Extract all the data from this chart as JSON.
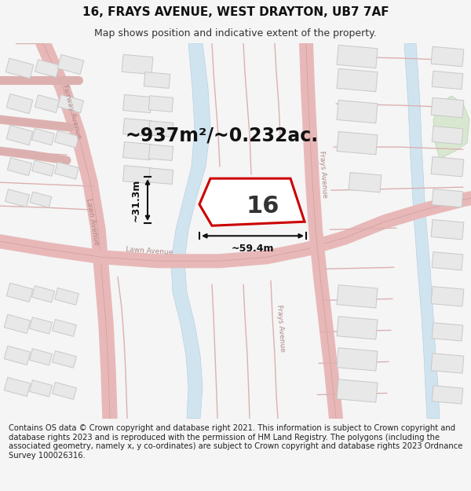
{
  "title": "16, FRAYS AVENUE, WEST DRAYTON, UB7 7AF",
  "subtitle": "Map shows position and indicative extent of the property.",
  "area_text": "~937m²/~0.232ac.",
  "property_number": "16",
  "width_label": "~59.4m",
  "height_label": "~31.3m",
  "copyright_text": "Contains OS data © Crown copyright and database right 2021. This information is subject to Crown copyright and database rights 2023 and is reproduced with the permission of HM Land Registry. The polygons (including the associated geometry, namely x, y co-ordinates) are subject to Crown copyright and database rights 2023 Ordnance Survey 100026316.",
  "bg_color": "#f5f5f5",
  "map_bg": "#ffffff",
  "road_color": "#e8b8b8",
  "road_outline": "#d4a0a0",
  "water_color": "#d0e4f0",
  "water_edge": "#b8cfe0",
  "green_color": "#d8e8d0",
  "property_outline_color": "#cc0000",
  "property_fill": "#ffffff",
  "building_fill": "#e8e8e8",
  "building_outline": "#c8c8c8",
  "title_fontsize": 11,
  "subtitle_fontsize": 9,
  "area_fontsize": 17,
  "number_fontsize": 22,
  "copyright_fontsize": 7.2,
  "road_label_color": "#b08888",
  "road_label_size": 6.5
}
